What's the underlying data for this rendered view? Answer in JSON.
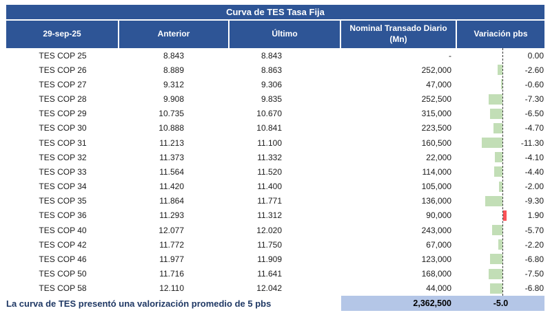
{
  "colors": {
    "header_blue": "#2E5596",
    "footer_lavender": "#B4C6E7",
    "bar_green": "#C2DEB6",
    "bar_red": "#FA5257",
    "note_navy": "#1F3864"
  },
  "table": {
    "title": "Curva de TES Tasa Fija",
    "columns": [
      "29-sep-25",
      "Anterior",
      "Último",
      "Nominal Transado Diario (Mn)",
      "Variación pbs"
    ],
    "rows": [
      {
        "label": "TES COP 25",
        "anterior": "8.843",
        "ultimo": "8.843",
        "nominal": "-",
        "variacion": "0.00"
      },
      {
        "label": "TES COP 26",
        "anterior": "8.889",
        "ultimo": "8.863",
        "nominal": "252,000",
        "variacion": "-2.60"
      },
      {
        "label": "TES COP 27",
        "anterior": "9.312",
        "ultimo": "9.306",
        "nominal": "47,000",
        "variacion": "-0.60"
      },
      {
        "label": "TES COP 28",
        "anterior": "9.908",
        "ultimo": "9.835",
        "nominal": "252,500",
        "variacion": "-7.30"
      },
      {
        "label": "TES COP 29",
        "anterior": "10.735",
        "ultimo": "10.670",
        "nominal": "315,000",
        "variacion": "-6.50"
      },
      {
        "label": "TES COP 30",
        "anterior": "10.888",
        "ultimo": "10.841",
        "nominal": "223,500",
        "variacion": "-4.70"
      },
      {
        "label": "TES COP 31",
        "anterior": "11.213",
        "ultimo": "11.100",
        "nominal": "160,500",
        "variacion": "-11.30"
      },
      {
        "label": "TES COP 32",
        "anterior": "11.373",
        "ultimo": "11.332",
        "nominal": "22,000",
        "variacion": "-4.10"
      },
      {
        "label": "TES COP 33",
        "anterior": "11.564",
        "ultimo": "11.520",
        "nominal": "114,000",
        "variacion": "-4.40"
      },
      {
        "label": "TES COP 34",
        "anterior": "11.420",
        "ultimo": "11.400",
        "nominal": "105,000",
        "variacion": "-2.00"
      },
      {
        "label": "TES COP 35",
        "anterior": "11.864",
        "ultimo": "11.771",
        "nominal": "136,000",
        "variacion": "-9.30"
      },
      {
        "label": "TES COP 36",
        "anterior": "11.293",
        "ultimo": "11.312",
        "nominal": "90,000",
        "variacion": "1.90"
      },
      {
        "label": "TES COP 40",
        "anterior": "12.077",
        "ultimo": "12.020",
        "nominal": "243,000",
        "variacion": "-5.70"
      },
      {
        "label": "TES COP 42",
        "anterior": "11.772",
        "ultimo": "11.750",
        "nominal": "67,000",
        "variacion": "-2.20"
      },
      {
        "label": "TES COP 46",
        "anterior": "11.977",
        "ultimo": "11.909",
        "nominal": "123,000",
        "variacion": "-6.80"
      },
      {
        "label": "TES COP 50",
        "anterior": "11.716",
        "ultimo": "11.641",
        "nominal": "168,000",
        "variacion": "-7.50"
      },
      {
        "label": "TES COP 58",
        "anterior": "12.110",
        "ultimo": "12.042",
        "nominal": "44,000",
        "variacion": "-6.80"
      }
    ]
  },
  "footer": {
    "note": "La curva de TES presentó una valorización promedio de 5 pbs",
    "total_nominal": "2,362,500",
    "avg_variacion_pbs": "-5.0"
  }
}
